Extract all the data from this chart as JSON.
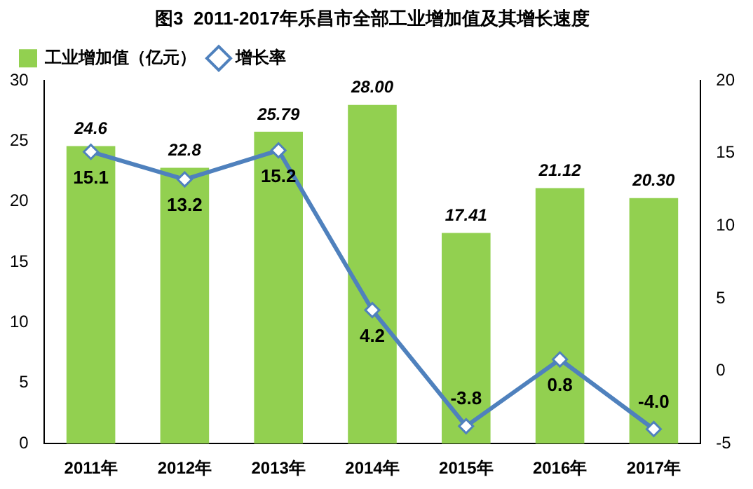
{
  "chart_data": {
    "type": "bar",
    "title": "图3  2011-2017年乐昌市全部工业增加值及其增长速度",
    "categories": [
      "2011年",
      "2012年",
      "2013年",
      "2014年",
      "2015年",
      "2016年",
      "2017年"
    ],
    "series": [
      {
        "name": "工业增加值（亿元）",
        "color": "#92d050",
        "values": [
          24.6,
          22.8,
          25.79,
          28.0,
          17.41,
          21.12,
          20.3
        ],
        "value_labels": [
          "24.6",
          "22.8",
          "25.79",
          "28.00",
          "17.41",
          "21.12",
          "20.30"
        ]
      },
      {
        "name": "增长率",
        "type": "line",
        "axis": "y2",
        "color": "#4f81bd",
        "values": [
          15.1,
          13.2,
          15.2,
          4.2,
          -3.8,
          0.8,
          -4.0
        ],
        "value_labels": [
          "15.1",
          "13.2",
          "15.2",
          "4.2",
          "-3.8",
          "0.8",
          "-4.0"
        ]
      }
    ],
    "ylim": [
      0,
      30
    ],
    "yticks": [
      0,
      5,
      10,
      15,
      20,
      25,
      30
    ],
    "y2lim": [
      -5,
      20
    ],
    "y2ticks": [
      -5,
      0,
      5,
      10,
      15,
      20
    ],
    "legend": "top left",
    "marker": "diamond",
    "line_style": "solid",
    "grid": false
  }
}
